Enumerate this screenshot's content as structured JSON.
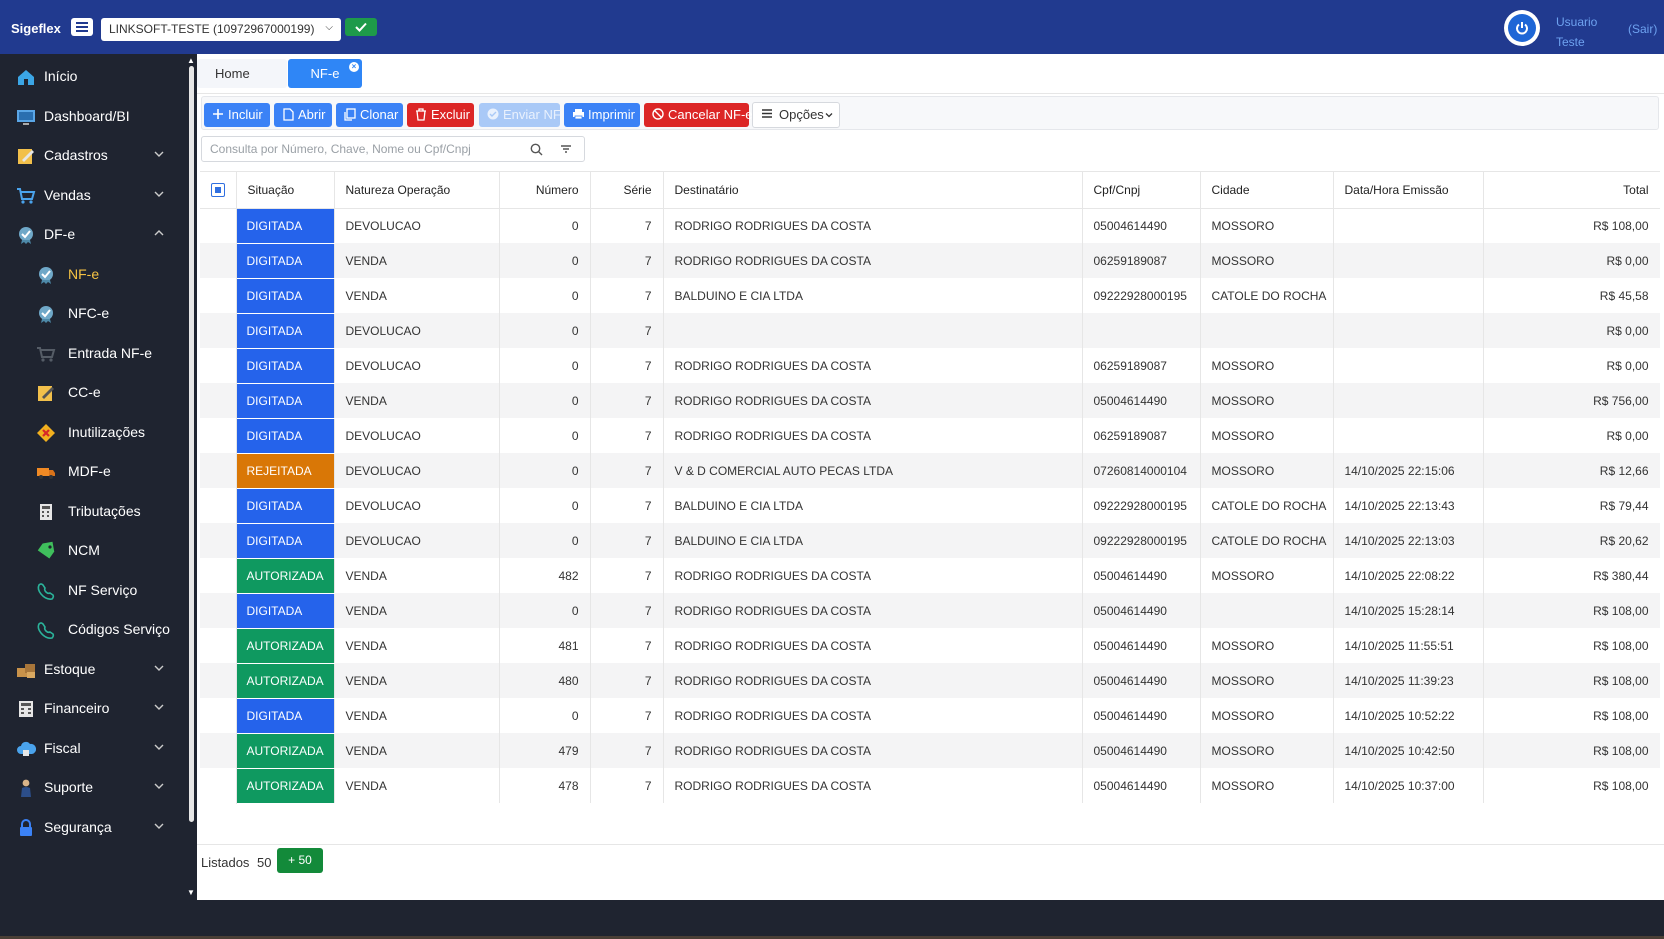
{
  "app": {
    "brand": "Sigeflex"
  },
  "topbar": {
    "company": "LINKSOFT-TESTE (10972967000199)",
    "user_line1": "Usuario",
    "user_line2": "Teste",
    "logout": "(Sair)"
  },
  "sidebar": {
    "items": [
      {
        "label": "Início",
        "icon": "home-icon"
      },
      {
        "label": "Dashboard/BI",
        "icon": "monitor-icon"
      },
      {
        "label": "Cadastros",
        "icon": "pencil-note-icon"
      },
      {
        "label": "Vendas",
        "icon": "cart-icon"
      },
      {
        "label": "DF-e",
        "icon": "seal-icon"
      },
      {
        "label": "NF-e",
        "icon": "seal-icon"
      },
      {
        "label": "NFC-e",
        "icon": "seal-icon"
      },
      {
        "label": "Entrada NF-e",
        "icon": "cart-icon"
      },
      {
        "label": "CC-e",
        "icon": "pencil-note-icon"
      },
      {
        "label": "Inutilizações",
        "icon": "warning-icon"
      },
      {
        "label": "MDF-e",
        "icon": "truck-icon"
      },
      {
        "label": "Tributações",
        "icon": "calculator-icon"
      },
      {
        "label": "NCM",
        "icon": "tag-icon"
      },
      {
        "label": "NF Serviço",
        "icon": "phone-icon"
      },
      {
        "label": "Códigos Serviço",
        "icon": "phone-icon"
      },
      {
        "label": "Estoque",
        "icon": "boxes-icon"
      },
      {
        "label": "Financeiro",
        "icon": "calculator-icon"
      },
      {
        "label": "Fiscal",
        "icon": "cloud-icon"
      },
      {
        "label": "Suporte",
        "icon": "person-icon"
      },
      {
        "label": "Segurança",
        "icon": "lock-icon"
      }
    ]
  },
  "tabs": {
    "home": "Home",
    "nfe": "NF-e"
  },
  "toolbar": {
    "incluir": "Incluir",
    "abrir": "Abrir",
    "clonar": "Clonar",
    "excluir": "Excluir",
    "enviar": "Enviar NF",
    "imprimir": "Imprimir",
    "cancelar": "Cancelar NF-e",
    "opcoes": "Opções"
  },
  "search": {
    "placeholder": "Consulta por Número, Chave, Nome ou Cpf/Cnpj"
  },
  "colors": {
    "digitada": "#2563eb",
    "rejeitada": "#d97706",
    "autorizada": "#0f9960",
    "header": "#213a8f"
  },
  "table": {
    "columns": [
      "Situação",
      "Natureza Operação",
      "Número",
      "Série",
      "Destinatário",
      "Cpf/Cnpj",
      "Cidade",
      "Data/Hora Emissão",
      "Total"
    ],
    "rows": [
      {
        "situacao": "DIGITADA",
        "natureza": "DEVOLUCAO",
        "numero": "0",
        "serie": "7",
        "destinatario": "RODRIGO RODRIGUES DA COSTA",
        "cpf": "05004614490",
        "cidade": "MOSSORO",
        "data": "",
        "total": "R$ 108,00"
      },
      {
        "situacao": "DIGITADA",
        "natureza": "VENDA",
        "numero": "0",
        "serie": "7",
        "destinatario": "RODRIGO RODRIGUES DA COSTA",
        "cpf": "06259189087",
        "cidade": "MOSSORO",
        "data": "",
        "total": "R$ 0,00"
      },
      {
        "situacao": "DIGITADA",
        "natureza": "VENDA",
        "numero": "0",
        "serie": "7",
        "destinatario": "BALDUINO E CIA LTDA",
        "cpf": "09222928000195",
        "cidade": "CATOLE DO ROCHA",
        "data": "",
        "total": "R$ 45,58"
      },
      {
        "situacao": "DIGITADA",
        "natureza": "DEVOLUCAO",
        "numero": "0",
        "serie": "7",
        "destinatario": "",
        "cpf": "",
        "cidade": "",
        "data": "",
        "total": "R$ 0,00"
      },
      {
        "situacao": "DIGITADA",
        "natureza": "DEVOLUCAO",
        "numero": "0",
        "serie": "7",
        "destinatario": "RODRIGO RODRIGUES DA COSTA",
        "cpf": "06259189087",
        "cidade": "MOSSORO",
        "data": "",
        "total": "R$ 0,00"
      },
      {
        "situacao": "DIGITADA",
        "natureza": "VENDA",
        "numero": "0",
        "serie": "7",
        "destinatario": "RODRIGO RODRIGUES DA COSTA",
        "cpf": "05004614490",
        "cidade": "MOSSORO",
        "data": "",
        "total": "R$ 756,00"
      },
      {
        "situacao": "DIGITADA",
        "natureza": "DEVOLUCAO",
        "numero": "0",
        "serie": "7",
        "destinatario": "RODRIGO RODRIGUES DA COSTA",
        "cpf": "06259189087",
        "cidade": "MOSSORO",
        "data": "",
        "total": "R$ 0,00"
      },
      {
        "situacao": "REJEITADA",
        "natureza": "DEVOLUCAO",
        "numero": "0",
        "serie": "7",
        "destinatario": "V & D COMERCIAL AUTO PECAS LTDA",
        "cpf": "07260814000104",
        "cidade": "MOSSORO",
        "data": "14/10/2025 22:15:06",
        "total": "R$ 12,66"
      },
      {
        "situacao": "DIGITADA",
        "natureza": "DEVOLUCAO",
        "numero": "0",
        "serie": "7",
        "destinatario": "BALDUINO E CIA LTDA",
        "cpf": "09222928000195",
        "cidade": "CATOLE DO ROCHA",
        "data": "14/10/2025 22:13:43",
        "total": "R$ 79,44"
      },
      {
        "situacao": "DIGITADA",
        "natureza": "DEVOLUCAO",
        "numero": "0",
        "serie": "7",
        "destinatario": "BALDUINO E CIA LTDA",
        "cpf": "09222928000195",
        "cidade": "CATOLE DO ROCHA",
        "data": "14/10/2025 22:13:03",
        "total": "R$ 20,62"
      },
      {
        "situacao": "AUTORIZADA",
        "natureza": "VENDA",
        "numero": "482",
        "serie": "7",
        "destinatario": "RODRIGO RODRIGUES DA COSTA",
        "cpf": "05004614490",
        "cidade": "MOSSORO",
        "data": "14/10/2025 22:08:22",
        "total": "R$ 380,44"
      },
      {
        "situacao": "DIGITADA",
        "natureza": "VENDA",
        "numero": "0",
        "serie": "7",
        "destinatario": "RODRIGO RODRIGUES DA COSTA",
        "cpf": "05004614490",
        "cidade": "",
        "data": "14/10/2025 15:28:14",
        "total": "R$ 108,00"
      },
      {
        "situacao": "AUTORIZADA",
        "natureza": "VENDA",
        "numero": "481",
        "serie": "7",
        "destinatario": "RODRIGO RODRIGUES DA COSTA",
        "cpf": "05004614490",
        "cidade": "MOSSORO",
        "data": "14/10/2025 11:55:51",
        "total": "R$ 108,00"
      },
      {
        "situacao": "AUTORIZADA",
        "natureza": "VENDA",
        "numero": "480",
        "serie": "7",
        "destinatario": "RODRIGO RODRIGUES DA COSTA",
        "cpf": "05004614490",
        "cidade": "MOSSORO",
        "data": "14/10/2025 11:39:23",
        "total": "R$ 108,00"
      },
      {
        "situacao": "DIGITADA",
        "natureza": "VENDA",
        "numero": "0",
        "serie": "7",
        "destinatario": "RODRIGO RODRIGUES DA COSTA",
        "cpf": "05004614490",
        "cidade": "MOSSORO",
        "data": "14/10/2025 10:52:22",
        "total": "R$ 108,00"
      },
      {
        "situacao": "AUTORIZADA",
        "natureza": "VENDA",
        "numero": "479",
        "serie": "7",
        "destinatario": "RODRIGO RODRIGUES DA COSTA",
        "cpf": "05004614490",
        "cidade": "MOSSORO",
        "data": "14/10/2025 10:42:50",
        "total": "R$ 108,00"
      },
      {
        "situacao": "AUTORIZADA",
        "natureza": "VENDA",
        "numero": "478",
        "serie": "7",
        "destinatario": "RODRIGO RODRIGUES DA COSTA",
        "cpf": "05004614490",
        "cidade": "MOSSORO",
        "data": "14/10/2025 10:37:00",
        "total": "R$ 108,00"
      }
    ]
  },
  "footer": {
    "listed_label": "Listados",
    "listed_count": "50",
    "load_more": "+ 50"
  }
}
